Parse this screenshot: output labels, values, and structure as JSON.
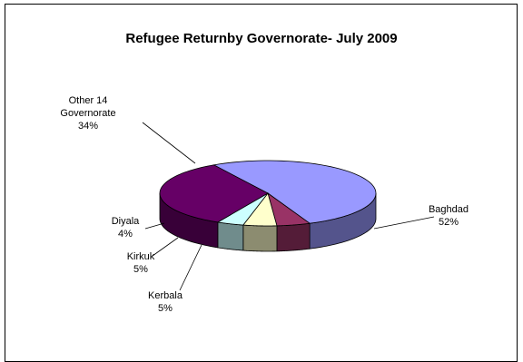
{
  "chart_data": {
    "type": "pie",
    "title": "Refugee Returnby Governorate- July 2009",
    "slices": [
      {
        "label": "Baghdad",
        "value": 52,
        "value_label": "52%",
        "color": "#9999ff"
      },
      {
        "label": "Kerbala",
        "value": 5,
        "value_label": "5%",
        "color": "#993366"
      },
      {
        "label": "Kirkuk",
        "value": 5,
        "value_label": "5%",
        "color": "#ffffcc"
      },
      {
        "label": "Diyala",
        "value": 4,
        "value_label": "4%",
        "color": "#ccffff"
      },
      {
        "label": "Other 14 Governorate",
        "label_lines": [
          "Other 14",
          "Governorate"
        ],
        "value": 34,
        "value_label": "34%",
        "color": "#660066"
      }
    ]
  }
}
